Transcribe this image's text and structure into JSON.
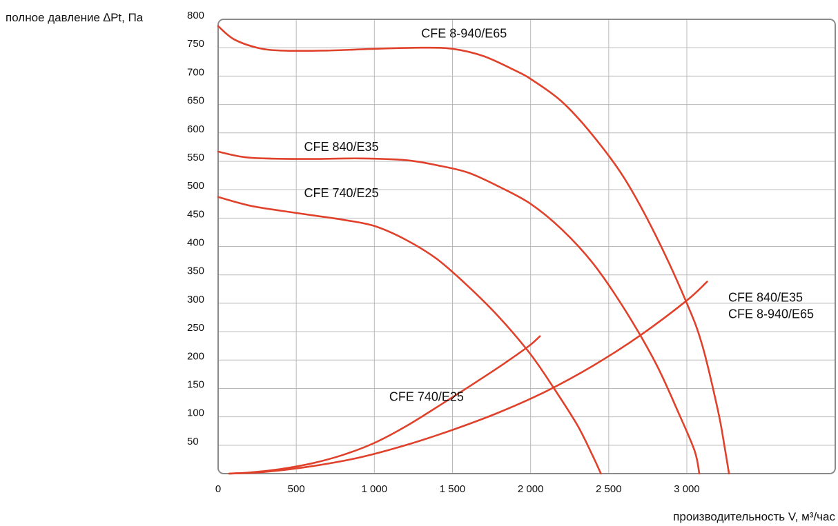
{
  "chart_data": {
    "type": "line",
    "title": "",
    "xlabel": "производительность V, м³/час",
    "ylabel": "полное давление ∆Pt, Па",
    "xlim": [
      0,
      3950
    ],
    "ylim": [
      0,
      800
    ],
    "grid": true,
    "x_ticks": [
      0,
      500,
      1000,
      1500,
      2000,
      2500,
      3000
    ],
    "x_tick_labels": [
      "0",
      "500",
      "1 000",
      "1 500",
      "2 000",
      "2 500",
      "3 000"
    ],
    "y_ticks": [
      50,
      100,
      150,
      200,
      250,
      300,
      350,
      400,
      450,
      500,
      550,
      600,
      650,
      700,
      750,
      800
    ],
    "y_tick_labels": [
      "50",
      "100",
      "150",
      "200",
      "250",
      "300",
      "350",
      "400",
      "450",
      "500",
      "550",
      "600",
      "650",
      "700",
      "750",
      "800"
    ],
    "line_color": "#e0412b",
    "series": [
      {
        "name": "CFE 8-940/E65",
        "kind": "fan",
        "label_at": [
          1300,
          768
        ],
        "points": [
          [
            0,
            788
          ],
          [
            100,
            765
          ],
          [
            250,
            750
          ],
          [
            400,
            745
          ],
          [
            700,
            745
          ],
          [
            1000,
            748
          ],
          [
            1300,
            750
          ],
          [
            1500,
            748
          ],
          [
            1700,
            735
          ],
          [
            1900,
            710
          ],
          [
            2000,
            695
          ],
          [
            2200,
            655
          ],
          [
            2400,
            595
          ],
          [
            2600,
            520
          ],
          [
            2800,
            420
          ],
          [
            3000,
            300
          ],
          [
            3100,
            225
          ],
          [
            3200,
            110
          ],
          [
            3240,
            50
          ],
          [
            3270,
            0
          ]
        ]
      },
      {
        "name": "CFE 840/E35",
        "kind": "fan",
        "label_at": [
          550,
          568
        ],
        "points": [
          [
            0,
            567
          ],
          [
            150,
            558
          ],
          [
            300,
            555
          ],
          [
            600,
            554
          ],
          [
            900,
            555
          ],
          [
            1200,
            552
          ],
          [
            1400,
            543
          ],
          [
            1600,
            530
          ],
          [
            1800,
            505
          ],
          [
            2000,
            475
          ],
          [
            2200,
            430
          ],
          [
            2400,
            370
          ],
          [
            2600,
            290
          ],
          [
            2800,
            195
          ],
          [
            2950,
            105
          ],
          [
            3050,
            40
          ],
          [
            3080,
            0
          ]
        ]
      },
      {
        "name": "CFE 740/E25",
        "kind": "fan",
        "label_at": [
          550,
          487
        ],
        "points": [
          [
            0,
            487
          ],
          [
            200,
            472
          ],
          [
            400,
            463
          ],
          [
            600,
            455
          ],
          [
            800,
            447
          ],
          [
            1000,
            436
          ],
          [
            1200,
            412
          ],
          [
            1400,
            378
          ],
          [
            1600,
            330
          ],
          [
            1800,
            275
          ],
          [
            2000,
            210
          ],
          [
            2150,
            150
          ],
          [
            2300,
            85
          ],
          [
            2400,
            30
          ],
          [
            2450,
            0
          ]
        ]
      },
      {
        "name": "CFE 740/E25",
        "kind": "system",
        "label_at": [
          1095,
          128
        ],
        "points": [
          [
            70,
            0
          ],
          [
            200,
            2
          ],
          [
            400,
            8
          ],
          [
            600,
            18
          ],
          [
            800,
            33
          ],
          [
            1000,
            54
          ],
          [
            1200,
            83
          ],
          [
            1400,
            117
          ],
          [
            1600,
            152
          ],
          [
            1800,
            188
          ],
          [
            1900,
            207
          ],
          [
            2000,
            227
          ],
          [
            2060,
            242
          ]
        ]
      },
      {
        "name": "CFE 840/E35\nCFE 8-940/E65",
        "kind": "system",
        "label_at": [
          3265,
          303
        ],
        "points": [
          [
            70,
            0
          ],
          [
            300,
            3
          ],
          [
            600,
            13
          ],
          [
            900,
            28
          ],
          [
            1200,
            50
          ],
          [
            1500,
            77
          ],
          [
            1800,
            108
          ],
          [
            2100,
            145
          ],
          [
            2400,
            190
          ],
          [
            2700,
            243
          ],
          [
            3000,
            305
          ],
          [
            3130,
            338
          ]
        ]
      }
    ]
  }
}
